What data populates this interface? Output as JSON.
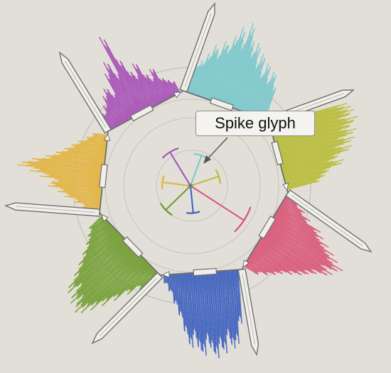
{
  "annotation": {
    "label": "Spike glyph"
  },
  "colors": {
    "background": "#e2dfd8",
    "frame": "#6f6f6f",
    "axis_fill": "#f0efea",
    "rings": "#c6c3bc",
    "callout_bg": "#f4f3ef",
    "arrow": "#555555"
  },
  "chart_data": {
    "type": "radial-histogram",
    "dimensions": [
      {
        "color": "#7ac8cc",
        "values": [
          0.35,
          0.4,
          0.5,
          0.62,
          0.55,
          0.7,
          0.66,
          0.8,
          0.92,
          0.78,
          1.0,
          0.85,
          0.72,
          0.8,
          0.6,
          0.7,
          0.5,
          0.62,
          0.45,
          0.55,
          0.4
        ]
      },
      {
        "color": "#b9bd3a",
        "values": [
          0.92,
          0.95,
          0.98,
          0.9,
          1.0,
          0.93,
          0.88,
          0.95,
          0.82,
          0.9,
          0.76,
          0.85,
          0.7,
          0.62,
          0.72,
          0.55,
          0.48,
          0.4
        ]
      },
      {
        "color": "#d95474",
        "values": [
          0.18,
          0.28,
          0.38,
          0.55,
          0.62,
          0.72,
          0.82,
          0.9,
          1.0,
          0.88,
          0.92,
          0.8,
          0.72,
          0.65,
          0.55,
          0.45,
          0.38,
          0.3,
          0.2
        ]
      },
      {
        "color": "#3c5fbe",
        "values": [
          0.62,
          0.85,
          0.9,
          0.78,
          0.95,
          0.88,
          1.0,
          0.92,
          0.82,
          0.96,
          0.9,
          0.75,
          0.86,
          0.7,
          0.5,
          0.35,
          0.2,
          0.1
        ]
      },
      {
        "color": "#6c9a28",
        "values": [
          0.28,
          0.42,
          0.58,
          0.72,
          0.85,
          0.95,
          1.0,
          0.92,
          0.96,
          0.82,
          0.9,
          0.75,
          0.62,
          0.5,
          0.38,
          0.3,
          0.22
        ]
      },
      {
        "color": "#e3b23a",
        "values": [
          0.2,
          0.3,
          0.42,
          0.5,
          0.62,
          0.58,
          0.72,
          0.85,
          1.0,
          0.88,
          0.72,
          0.6,
          0.5,
          0.42,
          0.34,
          0.25,
          0.18
        ]
      },
      {
        "color": "#a64fb6",
        "values": [
          0.2,
          0.28,
          0.38,
          0.45,
          0.35,
          0.6,
          0.72,
          0.55,
          1.0,
          0.68,
          0.5,
          0.42,
          0.55,
          0.38,
          0.3,
          0.4,
          0.25,
          0.2,
          0.15
        ]
      }
    ],
    "spike_glyph": {
      "spikes": [
        {
          "color": "#7ac8cc",
          "length": 0.3
        },
        {
          "color": "#b9bd3a",
          "length": 0.25
        },
        {
          "color": "#d95474",
          "length": 0.95
        },
        {
          "color": "#3c5fbe",
          "length": 0.2
        },
        {
          "color": "#6c9a28",
          "length": 0.35
        },
        {
          "color": "#e3b23a",
          "length": 0.22
        },
        {
          "color": "#a64fb6",
          "length": 0.45
        }
      ]
    }
  }
}
